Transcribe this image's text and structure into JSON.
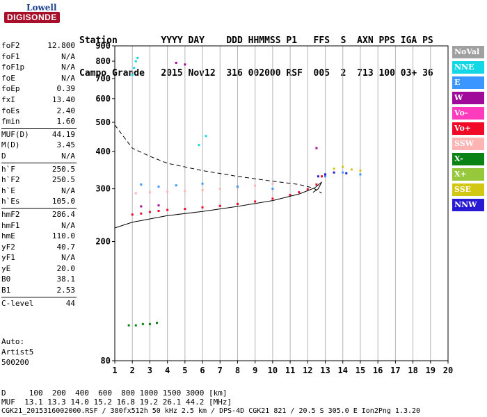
{
  "logo": {
    "line1": "Lowell",
    "line2": "DIGISONDE"
  },
  "header": {
    "labels": "Station        YYYY DAY    DDD HHMMSS P1   FFS  S  AXN PPS IGA PS",
    "values": "Campo Grande   2015 Nov12  316 002000 RSF  005  2  713 100 03+ 36"
  },
  "params": [
    {
      "name": "foF2",
      "value": "12.800"
    },
    {
      "name": "foF1",
      "value": "N/A"
    },
    {
      "name": "foF1p",
      "value": "N/A"
    },
    {
      "name": "foE",
      "value": "N/A"
    },
    {
      "name": "foEp",
      "value": "0.39"
    },
    {
      "name": "fxI",
      "value": "13.40"
    },
    {
      "name": "foEs",
      "value": "2.40"
    },
    {
      "name": "fmin",
      "value": "1.60"
    },
    {
      "name": "MUF(D)",
      "value": "44.19"
    },
    {
      "name": "M(D)",
      "value": "3.45"
    },
    {
      "name": "D",
      "value": "N/A"
    },
    {
      "name": "h`F",
      "value": "250.5"
    },
    {
      "name": "h`F2",
      "value": "250.5"
    },
    {
      "name": "h`E",
      "value": "N/A"
    },
    {
      "name": "h`Es",
      "value": "105.0"
    },
    {
      "name": "hmF2",
      "value": "286.4"
    },
    {
      "name": "hmF1",
      "value": "N/A"
    },
    {
      "name": "hmE",
      "value": "110.0"
    },
    {
      "name": "yF2",
      "value": "40.7"
    },
    {
      "name": "yF1",
      "value": "N/A"
    },
    {
      "name": "yE",
      "value": "20.0"
    },
    {
      "name": "B0",
      "value": "38.1"
    },
    {
      "name": "B1",
      "value": "2.53"
    },
    {
      "name": "C-level",
      "value": "44"
    }
  ],
  "auto": {
    "line1": "Auto:",
    "line2": "Artist5",
    "line3": "500200"
  },
  "legend": [
    {
      "label": "NoVal",
      "color": "#a0a0a0"
    },
    {
      "label": "NNE",
      "color": "#14d7e6"
    },
    {
      "label": "E",
      "color": "#3c96ff"
    },
    {
      "label": "W",
      "color": "#a00a9b"
    },
    {
      "label": "Vo-",
      "color": "#ff3cbe"
    },
    {
      "label": "Vo+",
      "color": "#f00a28"
    },
    {
      "label": "SSW",
      "color": "#ffb4b4"
    },
    {
      "label": "X-",
      "color": "#0a8214"
    },
    {
      "label": "X+",
      "color": "#96c83c"
    },
    {
      "label": "SSE",
      "color": "#d2c814"
    },
    {
      "label": "NNW",
      "color": "#2819d2"
    }
  ],
  "footer": {
    "line1": "D     100  200  400  600  800 1000 1500 3000 [km]",
    "line2": "MUF  13.1 13.3 14.0 15.2 16.8 19.2 26.1 44.2 [MHz]",
    "line3": "CGK21_2015316002000.RSF / 380fx512h 50 kHz 2.5 km / DPS-4D CGK21 821 / 20.5 S 305.0 E Ion2Png 1.3.20"
  },
  "chart_data": {
    "type": "scatter",
    "title": "",
    "xlabel": "",
    "ylabel": "",
    "xlim": [
      1,
      20
    ],
    "ylim": [
      80,
      900
    ],
    "x_ticks": [
      1,
      2,
      3,
      4,
      5,
      6,
      7,
      8,
      9,
      10,
      11,
      12,
      13,
      14,
      15,
      16,
      17,
      18,
      19,
      20
    ],
    "y_ticks": [
      80,
      200,
      300,
      400,
      500,
      600,
      700,
      800,
      900
    ],
    "grid": "vertical",
    "series": [
      {
        "name": "Vo+",
        "color": "#f00a28",
        "x": [
          2.0,
          2.5,
          3.0,
          3.5,
          4.0,
          5.0,
          6.0,
          7.0,
          8.0,
          9.0,
          10.0,
          11.0,
          11.5,
          12.0,
          12.5,
          12.8
        ],
        "y": [
          246,
          248,
          251,
          253,
          255,
          257,
          260,
          263,
          267,
          272,
          278,
          286,
          292,
          299,
          310,
          330
        ]
      },
      {
        "name": "SSW",
        "color": "#ffb4b4",
        "x": [
          2.2,
          3.0,
          4.0,
          5.0,
          6.0,
          7.0,
          8.0,
          9.0,
          10.0
        ],
        "y": [
          290,
          292,
          293,
          295,
          297,
          300,
          303,
          307,
          312
        ]
      },
      {
        "name": "E",
        "color": "#3c96ff",
        "x": [
          2.5,
          3.5,
          4.5,
          6.0,
          8.0,
          10.0,
          13.0,
          14.0,
          15.0
        ],
        "y": [
          310,
          305,
          308,
          312,
          305,
          300,
          330,
          340,
          335
        ]
      },
      {
        "name": "NNE",
        "color": "#14d7e6",
        "x": [
          2.0,
          2.1,
          2.2,
          2.3,
          5.8,
          6.2
        ],
        "y": [
          720,
          760,
          800,
          820,
          420,
          450
        ]
      },
      {
        "name": "W",
        "color": "#a00a9b",
        "x": [
          2.5,
          3.5,
          4.5,
          5.0,
          12.5
        ],
        "y": [
          262,
          264,
          790,
          780,
          410
        ]
      },
      {
        "name": "X-",
        "color": "#0a8214",
        "x": [
          1.8,
          2.2,
          2.6,
          3.0,
          3.4
        ],
        "y": [
          105,
          105,
          106,
          106,
          107
        ]
      },
      {
        "name": "SSE",
        "color": "#d2c814",
        "x": [
          13.5,
          14.0,
          14.5,
          15.0
        ],
        "y": [
          350,
          355,
          348,
          345
        ]
      },
      {
        "name": "NNW",
        "color": "#2819d2",
        "x": [
          12.6,
          13.0,
          13.5,
          14.2
        ],
        "y": [
          330,
          335,
          340,
          338
        ]
      }
    ],
    "profile_solid": {
      "x": [
        1.0,
        2.0,
        4.0,
        6.0,
        8.0,
        10.0,
        11.5,
        12.4,
        12.8,
        12.6,
        12.3
      ],
      "y": [
        222,
        232,
        244,
        252,
        262,
        274,
        288,
        302,
        316,
        300,
        292
      ]
    },
    "profile_dashed": {
      "x": [
        1.0,
        2.0,
        3.0,
        4.0,
        6.0,
        8.0,
        10.0,
        11.5,
        12.3,
        12.8
      ],
      "y": [
        490,
        410,
        385,
        365,
        345,
        330,
        318,
        310,
        302,
        290
      ]
    }
  }
}
